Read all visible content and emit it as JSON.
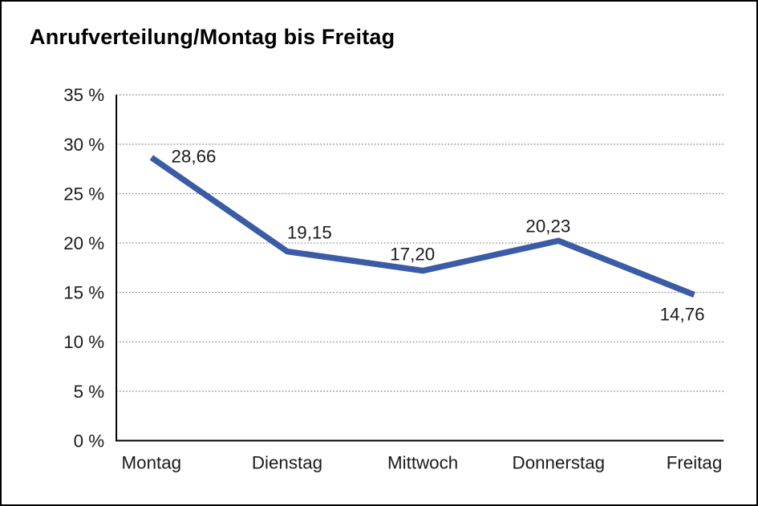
{
  "window": {
    "background_color": "#ffffff",
    "border_color": "#000000"
  },
  "chart": {
    "title": "Anrufverteilung/Montag bis Freitag"
  },
  "chart_data": {
    "type": "line",
    "title": "Anrufverteilung/Montag bis Freitag",
    "categories": [
      "Montag",
      "Dienstag",
      "Mittwoch",
      "Donnerstag",
      "Freitag"
    ],
    "values": [
      28.66,
      19.15,
      17.2,
      20.23,
      14.76
    ],
    "value_labels": [
      "28,66",
      "19,15",
      "17,20",
      "20,23",
      "14,76"
    ],
    "xlabel": "",
    "ylabel": "",
    "ylim": [
      0,
      35
    ],
    "yticks": [
      {
        "value": 0,
        "label": "0 %"
      },
      {
        "value": 5,
        "label": "5 %"
      },
      {
        "value": 10,
        "label": "10 %"
      },
      {
        "value": 15,
        "label": "15 %"
      },
      {
        "value": 20,
        "label": "20 %"
      },
      {
        "value": 25,
        "label": "25 %"
      },
      {
        "value": 30,
        "label": "30 %"
      },
      {
        "value": 35,
        "label": "35 %"
      }
    ],
    "grid": "horizontal-dotted",
    "legend": "none",
    "line_color": "#3a5ba5",
    "text_color": "#1a1a1a"
  }
}
